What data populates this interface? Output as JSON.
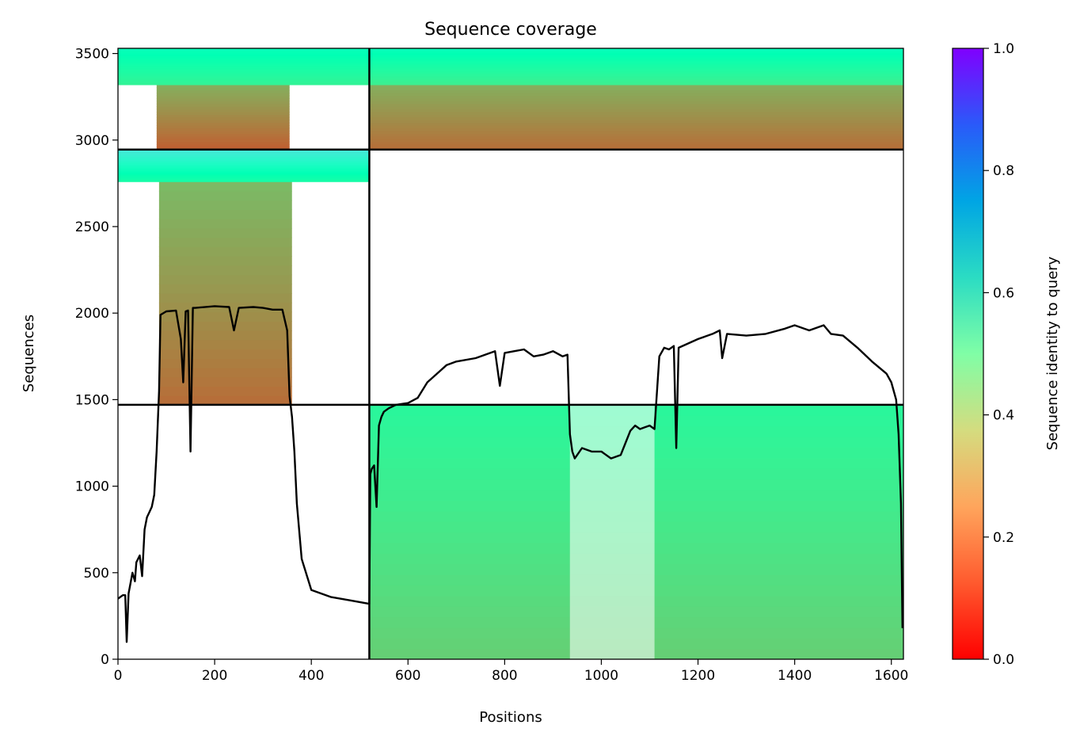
{
  "chart_data": {
    "type": "heatmap",
    "title": "Sequence coverage",
    "xlabel": "Positions",
    "ylabel": "Sequences",
    "xlim": [
      0,
      1625
    ],
    "ylim": [
      0,
      3530
    ],
    "x_ticks": [
      0,
      200,
      400,
      600,
      800,
      1000,
      1200,
      1400,
      1600
    ],
    "y_ticks": [
      0,
      500,
      1000,
      1500,
      2000,
      2500,
      3000,
      3500
    ],
    "colorbar": {
      "label": "Sequence identity to query",
      "range": [
        0,
        1
      ],
      "ticks": [
        0.0,
        0.2,
        0.4,
        0.6,
        0.8,
        1.0
      ],
      "tick_labels": [
        "0.0",
        "0.2",
        "0.4",
        "0.6",
        "0.8",
        "1.0"
      ],
      "colormap": "rainbow_r"
    },
    "chain_boundary_x": [
      520
    ],
    "chain_boundary_y": [
      1470,
      2945
    ],
    "msa_blocks": [
      {
        "name": "paired",
        "x": [
          520,
          1625
        ],
        "y": [
          0,
          1470
        ],
        "identity_bottom": 0.3,
        "identity_top": 0.42,
        "gap_columns": [
          [
            935,
            1110
          ]
        ]
      },
      {
        "name": "chain-A-unpaired-core",
        "x": [
          85,
          360
        ],
        "y": [
          1470,
          2760
        ],
        "identity_bottom": 0.14,
        "identity_top": 0.26
      },
      {
        "name": "chain-A-unpaired-top",
        "x": [
          0,
          520
        ],
        "y": [
          2760,
          2945
        ],
        "identity_bottom": 0.45,
        "identity_top": 0.64
      },
      {
        "name": "chain-A-unpaired-upper-core",
        "x": [
          80,
          355
        ],
        "y": [
          2945,
          3320
        ],
        "identity_bottom": 0.12,
        "identity_top": 0.24
      },
      {
        "name": "chain-A-unpaired-upper-top",
        "x": [
          0,
          520
        ],
        "y": [
          3320,
          3530
        ],
        "identity_bottom": 0.4,
        "identity_top": 0.52
      },
      {
        "name": "chain-B-unpaired-lower",
        "x": [
          520,
          1625
        ],
        "y": [
          2945,
          3320
        ],
        "identity_bottom": 0.14,
        "identity_top": 0.24
      },
      {
        "name": "chain-B-unpaired-top",
        "x": [
          520,
          1625
        ],
        "y": [
          3320,
          3530
        ],
        "identity_bottom": 0.38,
        "identity_top": 0.52
      }
    ],
    "coverage_line": {
      "x": [
        0,
        10,
        15,
        18,
        22,
        30,
        35,
        38,
        45,
        50,
        55,
        60,
        65,
        70,
        75,
        80,
        85,
        88,
        100,
        120,
        130,
        135,
        140,
        145,
        150,
        155,
        160,
        200,
        230,
        240,
        250,
        280,
        300,
        320,
        340,
        350,
        355,
        360,
        365,
        370,
        380,
        400,
        440,
        480,
        520,
        522,
        525,
        530,
        535,
        540,
        545,
        550,
        560,
        575,
        600,
        620,
        640,
        660,
        680,
        700,
        740,
        780,
        790,
        800,
        820,
        840,
        860,
        880,
        900,
        920,
        930,
        935,
        940,
        945,
        950,
        960,
        980,
        1000,
        1020,
        1040,
        1050,
        1060,
        1070,
        1080,
        1090,
        1100,
        1110,
        1120,
        1130,
        1140,
        1150,
        1155,
        1160,
        1200,
        1230,
        1245,
        1250,
        1260,
        1300,
        1340,
        1380,
        1400,
        1430,
        1460,
        1475,
        1500,
        1530,
        1560,
        1590,
        1600,
        1610,
        1615,
        1620,
        1623
      ],
      "y": [
        350,
        370,
        370,
        100,
        380,
        500,
        450,
        560,
        600,
        480,
        750,
        820,
        850,
        880,
        950,
        1200,
        1550,
        1990,
        2010,
        2015,
        1850,
        1600,
        2010,
        2015,
        1200,
        2030,
        2030,
        2040,
        2035,
        1900,
        2030,
        2035,
        2030,
        2020,
        2020,
        1900,
        1520,
        1400,
        1200,
        900,
        580,
        400,
        360,
        340,
        320,
        1070,
        1100,
        1120,
        880,
        1350,
        1400,
        1430,
        1450,
        1470,
        1480,
        1510,
        1600,
        1650,
        1700,
        1720,
        1740,
        1780,
        1580,
        1770,
        1780,
        1790,
        1750,
        1760,
        1780,
        1750,
        1760,
        1300,
        1200,
        1160,
        1180,
        1220,
        1200,
        1200,
        1160,
        1180,
        1250,
        1320,
        1350,
        1330,
        1340,
        1350,
        1330,
        1750,
        1800,
        1790,
        1810,
        1220,
        1800,
        1850,
        1880,
        1900,
        1740,
        1880,
        1870,
        1880,
        1910,
        1930,
        1900,
        1930,
        1880,
        1870,
        1800,
        1720,
        1650,
        1600,
        1500,
        1300,
        900,
        180
      ]
    }
  }
}
